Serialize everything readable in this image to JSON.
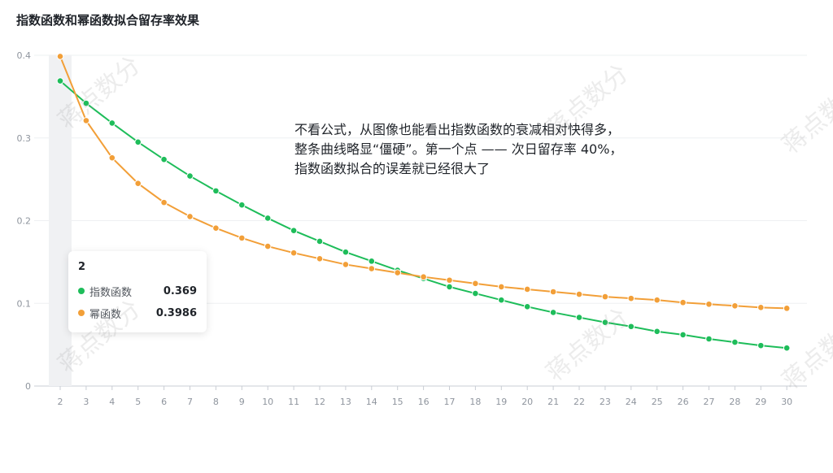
{
  "page": {
    "title": "指数函数和幂函数拟合留存率效果"
  },
  "annotation": {
    "lines": [
      "不看公式，从图像也能看出指数函数的衰减相对快得多，",
      "整条曲线略显“僵硬”。第一个点 —— 次日留存率 40%，",
      "指数函数拟合的误差就已经很大了"
    ]
  },
  "tooltip": {
    "title": "2",
    "rows": [
      {
        "name": "指数函数",
        "value": "0.369",
        "color": "#1ebd5a"
      },
      {
        "name": "幂函数",
        "value": "0.3986",
        "color": "#f29f38"
      }
    ]
  },
  "watermark": "蒋点数分",
  "chart_data": {
    "type": "line",
    "x": [
      2,
      3,
      4,
      5,
      6,
      7,
      8,
      9,
      10,
      11,
      12,
      13,
      14,
      15,
      16,
      17,
      18,
      19,
      20,
      21,
      22,
      23,
      24,
      25,
      26,
      27,
      28,
      29,
      30
    ],
    "ylim": [
      0,
      0.4
    ],
    "yticks": [
      "0",
      "0.1",
      "0.2",
      "0.3",
      "0.4"
    ],
    "highlight_x": 2,
    "grid": true,
    "series": [
      {
        "name": "指数函数",
        "color": "#1ebd5a",
        "values": [
          0.369,
          0.342,
          0.318,
          0.295,
          0.274,
          0.254,
          0.236,
          0.219,
          0.203,
          0.188,
          0.175,
          0.162,
          0.151,
          0.14,
          0.13,
          0.12,
          0.112,
          0.104,
          0.096,
          0.089,
          0.083,
          0.077,
          0.072,
          0.066,
          0.062,
          0.057,
          0.053,
          0.049,
          0.046
        ]
      },
      {
        "name": "幂函数",
        "color": "#f29f38",
        "values": [
          0.3986,
          0.321,
          0.276,
          0.245,
          0.222,
          0.205,
          0.191,
          0.179,
          0.169,
          0.161,
          0.154,
          0.147,
          0.142,
          0.137,
          0.132,
          0.128,
          0.124,
          0.12,
          0.117,
          0.114,
          0.111,
          0.108,
          0.106,
          0.104,
          0.101,
          0.099,
          0.097,
          0.095,
          0.094
        ]
      }
    ]
  }
}
